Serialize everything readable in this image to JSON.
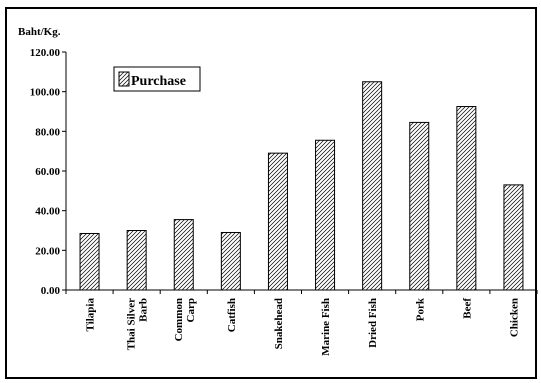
{
  "chart_data": {
    "type": "bar",
    "ylabel": "Baht/Kg.",
    "ylim": [
      0,
      120
    ],
    "yticks": [
      "0.00",
      "20.00",
      "40.00",
      "60.00",
      "80.00",
      "100.00",
      "120.00"
    ],
    "categories": [
      [
        "Tilapia"
      ],
      [
        "Thai Silver",
        "Barb"
      ],
      [
        "Common",
        "Carp"
      ],
      [
        "Catfish"
      ],
      [
        "Snakehead"
      ],
      [
        "Marine Fish"
      ],
      [
        "Dried Fish"
      ],
      [
        "Pork"
      ],
      [
        "Beef"
      ],
      [
        "Chicken"
      ]
    ],
    "series": [
      {
        "name": "Purchase",
        "values": [
          28.5,
          30.0,
          35.5,
          29.0,
          69.0,
          75.5,
          105.0,
          84.5,
          92.5,
          53.0
        ]
      }
    ],
    "legend": "top-left",
    "grid": false,
    "bar_pattern": "diagonal-hatch"
  }
}
